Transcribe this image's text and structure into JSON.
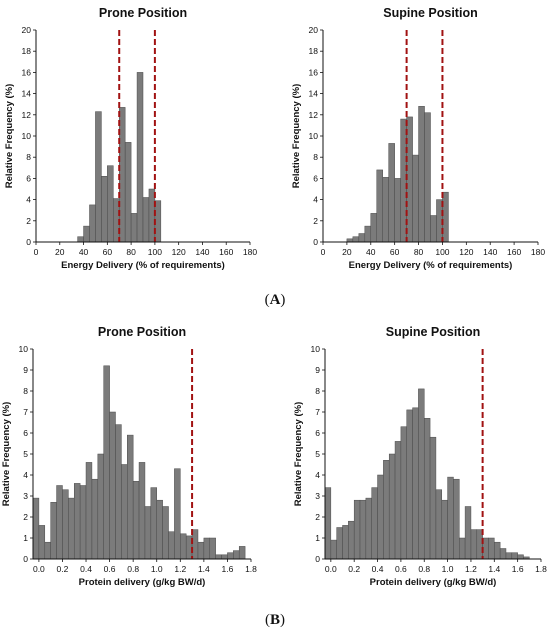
{
  "panel_labels": {
    "A": {
      "open": "(",
      "letter": "A",
      "close": ")"
    },
    "B": {
      "open": "(",
      "letter": "B",
      "close": ")"
    }
  },
  "colors": {
    "bar": "#7b7b7b",
    "bar_edge": "#4a4a4a",
    "reference_line": "#a11212"
  },
  "chart_data": [
    {
      "type": "bar",
      "panel": "A",
      "title": "Prone Position",
      "xlabel": "Energy Delivery (% of requirements)",
      "ylabel": "Relative Frequency (%)",
      "xlim": [
        0,
        180
      ],
      "ylim": [
        0,
        20
      ],
      "xticks": [
        0,
        20,
        40,
        60,
        80,
        100,
        120,
        140,
        160,
        180
      ],
      "yticks": [
        0,
        2,
        4,
        6,
        8,
        10,
        12,
        14,
        16,
        18,
        20
      ],
      "bin_width": 5,
      "bin_start": [
        35,
        40,
        45,
        50,
        55,
        60,
        65,
        70,
        75,
        80,
        85,
        90,
        95,
        100
      ],
      "values": [
        0.5,
        1.5,
        3.5,
        12.3,
        6.2,
        7.2,
        4.1,
        12.7,
        9.4,
        2.7,
        16.0,
        4.2,
        5.0,
        3.9
      ],
      "reference_lines": [
        70,
        100
      ],
      "grid": false
    },
    {
      "type": "bar",
      "panel": "A",
      "title": "Supine Position",
      "xlabel": "Energy Delivery (% of requirements)",
      "ylabel": "Relative Frequency (%)",
      "xlim": [
        0,
        180
      ],
      "ylim": [
        0,
        20
      ],
      "xticks": [
        0,
        20,
        40,
        60,
        80,
        100,
        120,
        140,
        160,
        180
      ],
      "yticks": [
        0,
        2,
        4,
        6,
        8,
        10,
        12,
        14,
        16,
        18,
        20
      ],
      "bin_width": 5,
      "bin_start": [
        20,
        25,
        30,
        35,
        40,
        45,
        50,
        55,
        60,
        65,
        70,
        75,
        80,
        85,
        90,
        95,
        100
      ],
      "values": [
        0.3,
        0.5,
        0.8,
        1.5,
        2.7,
        6.8,
        6.1,
        9.3,
        6.0,
        11.6,
        11.8,
        8.2,
        12.8,
        12.2,
        2.5,
        4.0,
        4.7
      ],
      "reference_lines": [
        70,
        100
      ],
      "grid": false
    },
    {
      "type": "bar",
      "panel": "B",
      "title": "Prone Position",
      "xlabel": "Protein delivery (g/kg BW/d)",
      "ylabel": "Relative Frequency (%)",
      "xlim": [
        -0.05,
        1.8
      ],
      "ylim": [
        0,
        10
      ],
      "xticks": [
        "0.0",
        "0.2",
        "0.4",
        "0.6",
        "0.8",
        "1.0",
        "1.2",
        "1.4",
        "1.6",
        "1.8"
      ],
      "yticks": [
        0,
        1,
        2,
        3,
        4,
        5,
        6,
        7,
        8,
        9,
        10
      ],
      "bin_width": 0.05,
      "bin_start": [
        -0.05,
        0.0,
        0.05,
        0.1,
        0.15,
        0.2,
        0.25,
        0.3,
        0.35,
        0.4,
        0.45,
        0.5,
        0.55,
        0.6,
        0.65,
        0.7,
        0.75,
        0.8,
        0.85,
        0.9,
        0.95,
        1.0,
        1.05,
        1.1,
        1.15,
        1.2,
        1.25,
        1.3,
        1.35,
        1.4,
        1.45,
        1.5,
        1.55,
        1.6,
        1.65,
        1.7
      ],
      "values": [
        2.9,
        1.6,
        0.8,
        2.7,
        3.5,
        3.3,
        2.9,
        3.6,
        3.5,
        4.6,
        3.8,
        5.0,
        9.2,
        7.0,
        6.4,
        4.5,
        5.9,
        3.7,
        4.6,
        2.5,
        3.4,
        2.8,
        2.5,
        1.3,
        4.3,
        1.2,
        1.1,
        1.4,
        0.8,
        1.0,
        1.0,
        0.2,
        0.2,
        0.3,
        0.4,
        0.6
      ],
      "reference_lines": [
        1.3
      ],
      "grid": false
    },
    {
      "type": "bar",
      "panel": "B",
      "title": "Supine Position",
      "xlabel": "Protein delivery (g/kg BW/d)",
      "ylabel": "Relative Frequency (%)",
      "xlim": [
        -0.05,
        1.8
      ],
      "ylim": [
        0,
        10
      ],
      "xticks": [
        "0.0",
        "0.2",
        "0.4",
        "0.6",
        "0.8",
        "1.0",
        "1.2",
        "1.4",
        "1.6",
        "1.8"
      ],
      "yticks": [
        0,
        1,
        2,
        3,
        4,
        5,
        6,
        7,
        8,
        9,
        10
      ],
      "bin_width": 0.05,
      "bin_start": [
        -0.05,
        0.0,
        0.05,
        0.1,
        0.15,
        0.2,
        0.25,
        0.3,
        0.35,
        0.4,
        0.45,
        0.5,
        0.55,
        0.6,
        0.65,
        0.7,
        0.75,
        0.8,
        0.85,
        0.9,
        0.95,
        1.0,
        1.05,
        1.1,
        1.15,
        1.2,
        1.25,
        1.3,
        1.35,
        1.4,
        1.45,
        1.5,
        1.55,
        1.6,
        1.65
      ],
      "values": [
        3.4,
        0.9,
        1.5,
        1.6,
        1.8,
        2.8,
        2.8,
        2.9,
        3.4,
        4.0,
        4.7,
        5.0,
        5.6,
        6.3,
        7.1,
        7.2,
        8.1,
        6.7,
        5.8,
        3.3,
        2.8,
        3.9,
        3.8,
        1.0,
        2.5,
        1.4,
        1.4,
        1.0,
        1.0,
        0.8,
        0.5,
        0.3,
        0.3,
        0.2,
        0.1
      ],
      "reference_lines": [
        1.3
      ],
      "grid": false
    }
  ]
}
